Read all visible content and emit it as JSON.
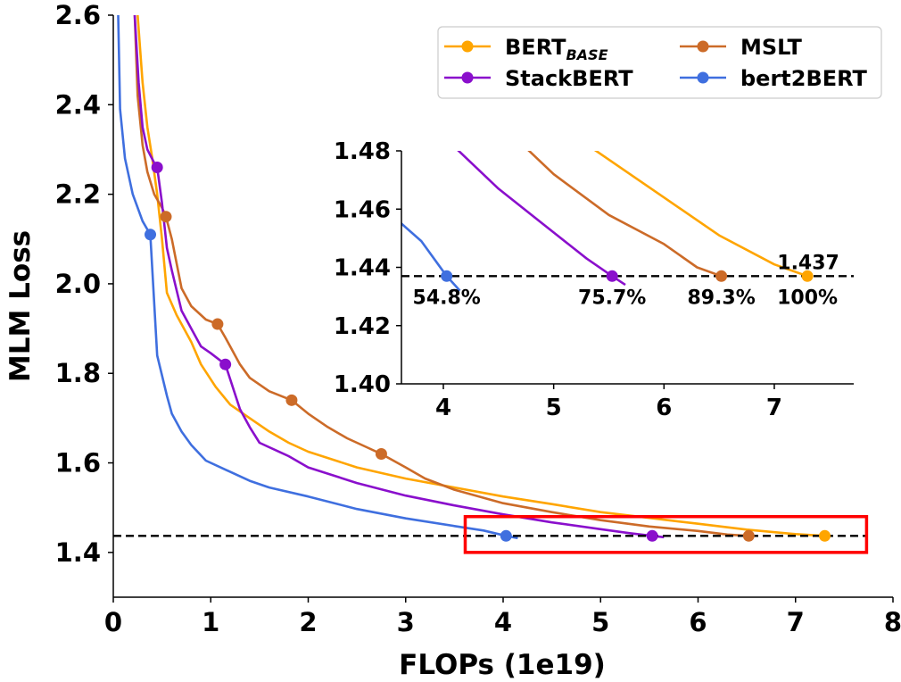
{
  "chart_data": {
    "type": "line",
    "xlabel": "FLOPs (1e19)",
    "ylabel": "MLM Loss",
    "xlim": [
      0,
      8
    ],
    "ylim": [
      1.3,
      2.6
    ],
    "xticks": [
      "0",
      "1",
      "2",
      "3",
      "4",
      "5",
      "6",
      "7",
      "8"
    ],
    "yticks": [
      "1.4",
      "1.6",
      "1.8",
      "2.0",
      "2.2",
      "2.4",
      "2.6"
    ],
    "target_loss": 1.437,
    "legend": {
      "placement": "top-right",
      "entries": [
        {
          "label": "BERT",
          "subscript": "BASE",
          "series": "bert_base"
        },
        {
          "label": "MSLT",
          "series": "mslt"
        },
        {
          "label": "StackBERT",
          "series": "stackbert"
        },
        {
          "label": "bert2BERT",
          "series": "bert2bert"
        }
      ]
    },
    "series": [
      {
        "key": "bert_base",
        "name": "BERT_BASE",
        "color": "#FFA500",
        "points": [
          [
            0.25,
            2.6
          ],
          [
            0.3,
            2.45
          ],
          [
            0.35,
            2.35
          ],
          [
            0.4,
            2.28
          ],
          [
            0.45,
            2.2
          ],
          [
            0.5,
            2.1
          ],
          [
            0.55,
            1.98
          ],
          [
            0.65,
            1.93
          ],
          [
            0.8,
            1.87
          ],
          [
            0.9,
            1.82
          ],
          [
            1.05,
            1.77
          ],
          [
            1.2,
            1.73
          ],
          [
            1.4,
            1.7
          ],
          [
            1.6,
            1.67
          ],
          [
            1.8,
            1.645
          ],
          [
            2.0,
            1.625
          ],
          [
            2.5,
            1.59
          ],
          [
            3.0,
            1.565
          ],
          [
            3.5,
            1.545
          ],
          [
            4.0,
            1.525
          ],
          [
            4.5,
            1.508
          ],
          [
            5.0,
            1.49
          ],
          [
            5.5,
            1.477
          ],
          [
            6.0,
            1.464
          ],
          [
            6.5,
            1.451
          ],
          [
            7.0,
            1.441
          ],
          [
            7.3,
            1.437
          ]
        ],
        "markers": [
          [
            7.3,
            1.437
          ]
        ]
      },
      {
        "key": "mslt",
        "name": "MSLT",
        "color": "#CC6B28",
        "points": [
          [
            0.22,
            2.6
          ],
          [
            0.25,
            2.42
          ],
          [
            0.3,
            2.31
          ],
          [
            0.35,
            2.25
          ],
          [
            0.42,
            2.2
          ],
          [
            0.5,
            2.17
          ],
          [
            0.54,
            2.15
          ],
          [
            0.6,
            2.1
          ],
          [
            0.7,
            1.99
          ],
          [
            0.8,
            1.95
          ],
          [
            0.95,
            1.92
          ],
          [
            1.07,
            1.91
          ],
          [
            1.15,
            1.88
          ],
          [
            1.3,
            1.82
          ],
          [
            1.4,
            1.79
          ],
          [
            1.6,
            1.76
          ],
          [
            1.83,
            1.74
          ],
          [
            2.0,
            1.71
          ],
          [
            2.2,
            1.68
          ],
          [
            2.4,
            1.655
          ],
          [
            2.6,
            1.635
          ],
          [
            2.75,
            1.62
          ],
          [
            3.0,
            1.59
          ],
          [
            3.2,
            1.565
          ],
          [
            3.5,
            1.54
          ],
          [
            4.0,
            1.51
          ],
          [
            4.5,
            1.49
          ],
          [
            5.0,
            1.472
          ],
          [
            5.5,
            1.458
          ],
          [
            6.0,
            1.448
          ],
          [
            6.3,
            1.44
          ],
          [
            6.52,
            1.437
          ]
        ],
        "markers": [
          [
            0.54,
            2.15
          ],
          [
            1.07,
            1.91
          ],
          [
            1.83,
            1.74
          ],
          [
            2.75,
            1.62
          ],
          [
            6.52,
            1.437
          ]
        ]
      },
      {
        "key": "stackbert",
        "name": "StackBERT",
        "color": "#8A0FCC",
        "points": [
          [
            0.22,
            2.6
          ],
          [
            0.26,
            2.45
          ],
          [
            0.3,
            2.35
          ],
          [
            0.35,
            2.3
          ],
          [
            0.42,
            2.27
          ],
          [
            0.45,
            2.26
          ],
          [
            0.5,
            2.18
          ],
          [
            0.55,
            2.08
          ],
          [
            0.6,
            2.03
          ],
          [
            0.7,
            1.94
          ],
          [
            0.8,
            1.9
          ],
          [
            0.9,
            1.86
          ],
          [
            1.0,
            1.845
          ],
          [
            1.15,
            1.82
          ],
          [
            1.3,
            1.72
          ],
          [
            1.4,
            1.68
          ],
          [
            1.5,
            1.645
          ],
          [
            1.8,
            1.615
          ],
          [
            2.0,
            1.59
          ],
          [
            2.5,
            1.555
          ],
          [
            3.0,
            1.527
          ],
          [
            3.5,
            1.505
          ],
          [
            4.0,
            1.485
          ],
          [
            4.5,
            1.467
          ],
          [
            5.0,
            1.452
          ],
          [
            5.3,
            1.443
          ],
          [
            5.53,
            1.437
          ],
          [
            5.65,
            1.434
          ]
        ],
        "markers": [
          [
            0.45,
            2.26
          ],
          [
            1.15,
            1.82
          ],
          [
            5.53,
            1.437
          ]
        ]
      },
      {
        "key": "bert2bert",
        "name": "bert2BERT",
        "color": "#3F6FDF",
        "points": [
          [
            0.05,
            2.6
          ],
          [
            0.07,
            2.39
          ],
          [
            0.12,
            2.28
          ],
          [
            0.2,
            2.2
          ],
          [
            0.3,
            2.14
          ],
          [
            0.38,
            2.11
          ],
          [
            0.45,
            1.84
          ],
          [
            0.55,
            1.75
          ],
          [
            0.6,
            1.71
          ],
          [
            0.7,
            1.67
          ],
          [
            0.8,
            1.64
          ],
          [
            0.95,
            1.605
          ],
          [
            1.2,
            1.58
          ],
          [
            1.4,
            1.56
          ],
          [
            1.6,
            1.545
          ],
          [
            2.0,
            1.525
          ],
          [
            2.5,
            1.497
          ],
          [
            3.0,
            1.476
          ],
          [
            3.5,
            1.459
          ],
          [
            3.8,
            1.449
          ],
          [
            4.03,
            1.437
          ],
          [
            4.15,
            1.432
          ]
        ],
        "markers": [
          [
            0.38,
            2.11
          ],
          [
            4.03,
            1.437
          ]
        ]
      }
    ],
    "inset": {
      "xlim": [
        3.62,
        7.72
      ],
      "ylim": [
        1.4,
        1.48
      ],
      "xticks": [
        "4",
        "5",
        "6",
        "7"
      ],
      "yticks": [
        "1.40",
        "1.42",
        "1.44",
        "1.46",
        "1.48"
      ],
      "value_label": "1.437",
      "annotations": [
        {
          "series": "bert2bert",
          "x": 4.03,
          "text": "54.8%"
        },
        {
          "series": "stackbert",
          "x": 5.53,
          "text": "75.7%"
        },
        {
          "series": "mslt",
          "x": 6.52,
          "text": "89.3%"
        },
        {
          "series": "bert_base",
          "x": 7.3,
          "text": "100%"
        }
      ],
      "highlight_box_color": "#FF0000"
    }
  }
}
